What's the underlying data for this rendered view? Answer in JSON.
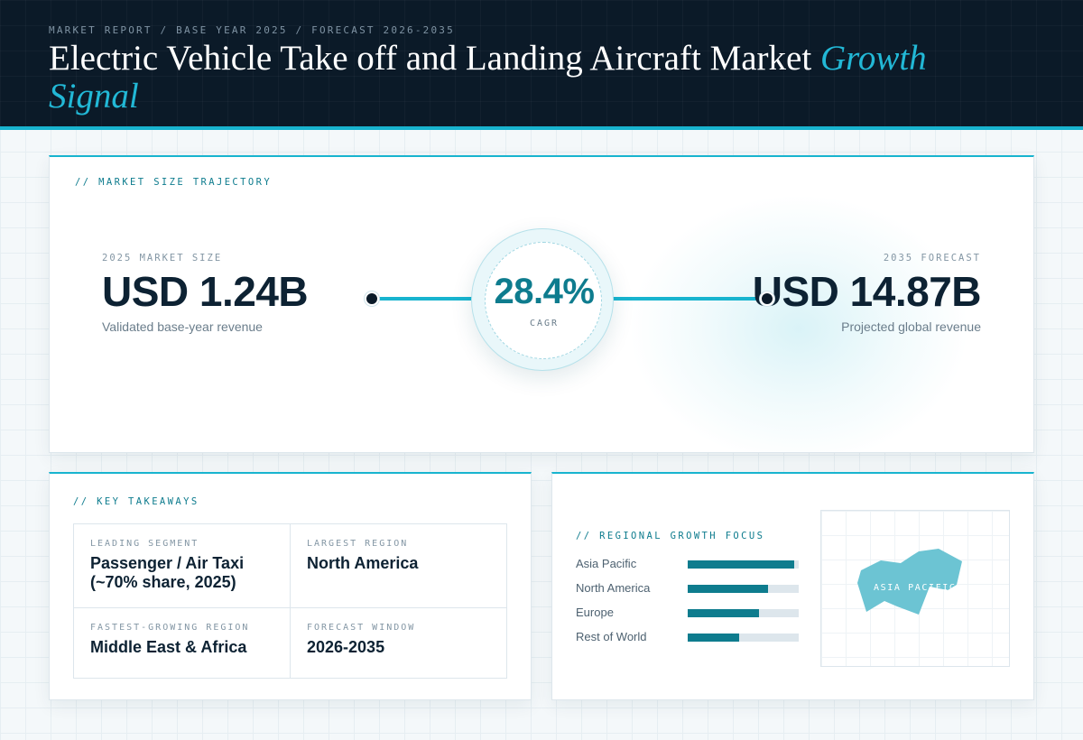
{
  "header": {
    "breadcrumb": "MARKET REPORT / BASE YEAR 2025 / FORECAST 2026-2035",
    "title_main": "Electric Vehicle Take off and Landing Aircraft Market",
    "title_accent": "Growth Signal"
  },
  "trajectory": {
    "label": "// MARKET SIZE TRAJECTORY",
    "start": {
      "kicker": "2025 MARKET SIZE",
      "value": "USD 1.24B",
      "subtitle": "Validated base-year revenue"
    },
    "end": {
      "kicker": "2035 FORECAST",
      "value": "USD 14.87B",
      "subtitle": "Projected global revenue"
    },
    "cagr": {
      "value": "28.4%",
      "label": "CAGR"
    }
  },
  "takeaways": {
    "label": "// KEY TAKEAWAYS",
    "items": [
      {
        "kicker": "LEADING SEGMENT",
        "value": "Passenger / Air Taxi (~70% share, 2025)"
      },
      {
        "kicker": "LARGEST REGION",
        "value": "North America"
      },
      {
        "kicker": "FASTEST-GROWING REGION",
        "value": "Middle East & Africa"
      },
      {
        "kicker": "FORECAST WINDOW",
        "value": "2026-2035"
      }
    ]
  },
  "regional": {
    "label": "// REGIONAL GROWTH FOCUS",
    "regions": [
      {
        "name": "Asia Pacific",
        "level": 0.96
      },
      {
        "name": "North America",
        "level": 0.72
      },
      {
        "name": "Europe",
        "level": 0.64
      },
      {
        "name": "Rest of World",
        "level": 0.46
      }
    ],
    "map_label": "ASIA PACIFIC",
    "colors": {
      "accent": "#18b4cf",
      "bar": "#0e7c8e",
      "map_fill": "#6cc4d3"
    }
  }
}
